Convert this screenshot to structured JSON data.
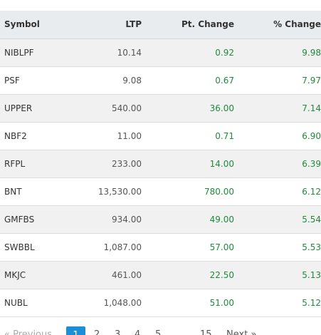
{
  "table": {
    "headers": {
      "symbol": "Symbol",
      "ltp": "LTP",
      "pt_change": "Pt. Change",
      "pct_change": "% Change"
    },
    "rows": [
      {
        "symbol": "NIBLPF",
        "ltp": "10.14",
        "pt_change": "0.92",
        "pct_change": "9.98"
      },
      {
        "symbol": "PSF",
        "ltp": "9.08",
        "pt_change": "0.67",
        "pct_change": "7.97"
      },
      {
        "symbol": "UPPER",
        "ltp": "540.00",
        "pt_change": "36.00",
        "pct_change": "7.14"
      },
      {
        "symbol": "NBF2",
        "ltp": "11.00",
        "pt_change": "0.71",
        "pct_change": "6.90"
      },
      {
        "symbol": "RFPL",
        "ltp": "233.00",
        "pt_change": "14.00",
        "pct_change": "6.39"
      },
      {
        "symbol": "BNT",
        "ltp": "13,530.00",
        "pt_change": "780.00",
        "pct_change": "6.12"
      },
      {
        "symbol": "GMFBS",
        "ltp": "934.00",
        "pt_change": "49.00",
        "pct_change": "5.54"
      },
      {
        "symbol": "SWBBL",
        "ltp": "1,087.00",
        "pt_change": "57.00",
        "pct_change": "5.53"
      },
      {
        "symbol": "MKJC",
        "ltp": "461.00",
        "pt_change": "22.50",
        "pct_change": "5.13"
      },
      {
        "symbol": "NUBL",
        "ltp": "1,048.00",
        "pt_change": "51.00",
        "pct_change": "5.12"
      }
    ]
  },
  "pagination": {
    "previous_label": "« Previous",
    "pages": [
      "1",
      "2",
      "3",
      "4",
      "5"
    ],
    "ellipsis": "...",
    "last_page": "15",
    "next_label": "Next »",
    "active_page": "1"
  },
  "colors": {
    "positive": "#1e8a3a",
    "header_bg": "#e8ecef",
    "active_page_bg": "#1a8fd8"
  }
}
